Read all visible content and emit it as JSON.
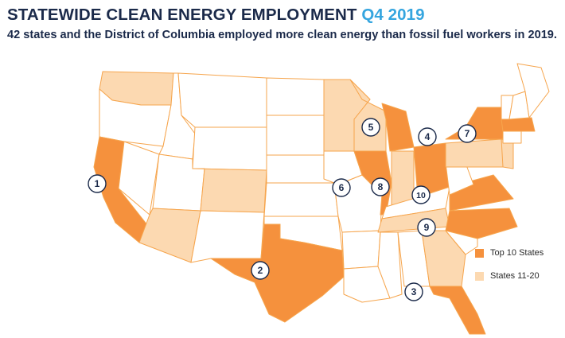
{
  "header": {
    "title": "STATEWIDE CLEAN ENERGY EMPLOYMENT",
    "title_accent": "Q4 2019",
    "subtitle": "42 states and the District of Columbia employed more clean energy than fossil fuel workers in 2019."
  },
  "colors": {
    "top10": "#f5913d",
    "states11_20": "#fcd9b1",
    "other": "#ffffff",
    "border": "#f6a54d",
    "title": "#1b2a4a",
    "accent": "#35a5df"
  },
  "legend": [
    {
      "label": "Top 10 States",
      "color": "#f5913d"
    },
    {
      "label": "States 11-20",
      "color": "#fcd9b1"
    }
  ],
  "map": {
    "top10": [
      {
        "rank": "1",
        "state": "California"
      },
      {
        "rank": "2",
        "state": "Texas"
      },
      {
        "rank": "3",
        "state": "Florida"
      },
      {
        "rank": "4",
        "state": "New York"
      },
      {
        "rank": "5",
        "state": "Michigan"
      },
      {
        "rank": "6",
        "state": "Illinois"
      },
      {
        "rank": "7",
        "state": "Massachusetts"
      },
      {
        "rank": "8",
        "state": "Ohio"
      },
      {
        "rank": "9",
        "state": "North Carolina"
      },
      {
        "rank": "10",
        "state": "Virginia"
      }
    ],
    "states_11_20": [
      "Washington",
      "Minnesota",
      "Wisconsin",
      "Colorado",
      "Arizona",
      "Indiana",
      "Pennsylvania",
      "Tennessee",
      "Georgia",
      "New Jersey"
    ]
  }
}
